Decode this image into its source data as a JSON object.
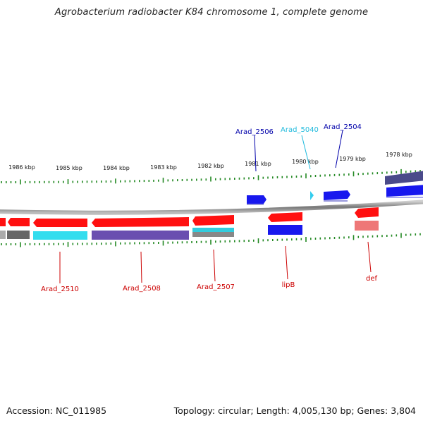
{
  "title": "Agrobacterium radiobacter K84 chromosome 1, complete genome",
  "footer": {
    "accession": "Accession: NC_011985",
    "info": "Topology: circular; Length: 4,005,130 bp; Genes: 3,804"
  },
  "colors": {
    "forward_red": "#ff1010",
    "reverse_blue": "#1010ee",
    "cyan": "#33ddee",
    "purple": "#6a4fb0",
    "dark_slate": "#4a4a8a",
    "pink": "#ee7777",
    "gray": "#666666",
    "tick_green": "#228822",
    "label_red": "#cc0000",
    "label_blue": "#0000aa",
    "label_cyan": "#22bbdd"
  },
  "scale_labels": [
    "1986 kbp",
    "1985 kbp",
    "1984 kbp",
    "1983 kbp",
    "1982 kbp",
    "1981 kbp",
    "1980 kbp",
    "1979 kbp",
    "1978 kbp"
  ],
  "gene_labels_top": [
    {
      "text": "Arad_2506",
      "color": "label_blue"
    },
    {
      "text": "Arad_5040",
      "color": "label_cyan"
    },
    {
      "text": "Arad_2504",
      "color": "label_blue"
    }
  ],
  "gene_labels_bottom": [
    {
      "text": "Arad_2510",
      "color": "label_red"
    },
    {
      "text": "Arad_2508",
      "color": "label_red"
    },
    {
      "text": "Arad_2507",
      "color": "label_red"
    },
    {
      "text": "lipB",
      "color": "label_red"
    },
    {
      "text": "def",
      "color": "label_red"
    }
  ]
}
